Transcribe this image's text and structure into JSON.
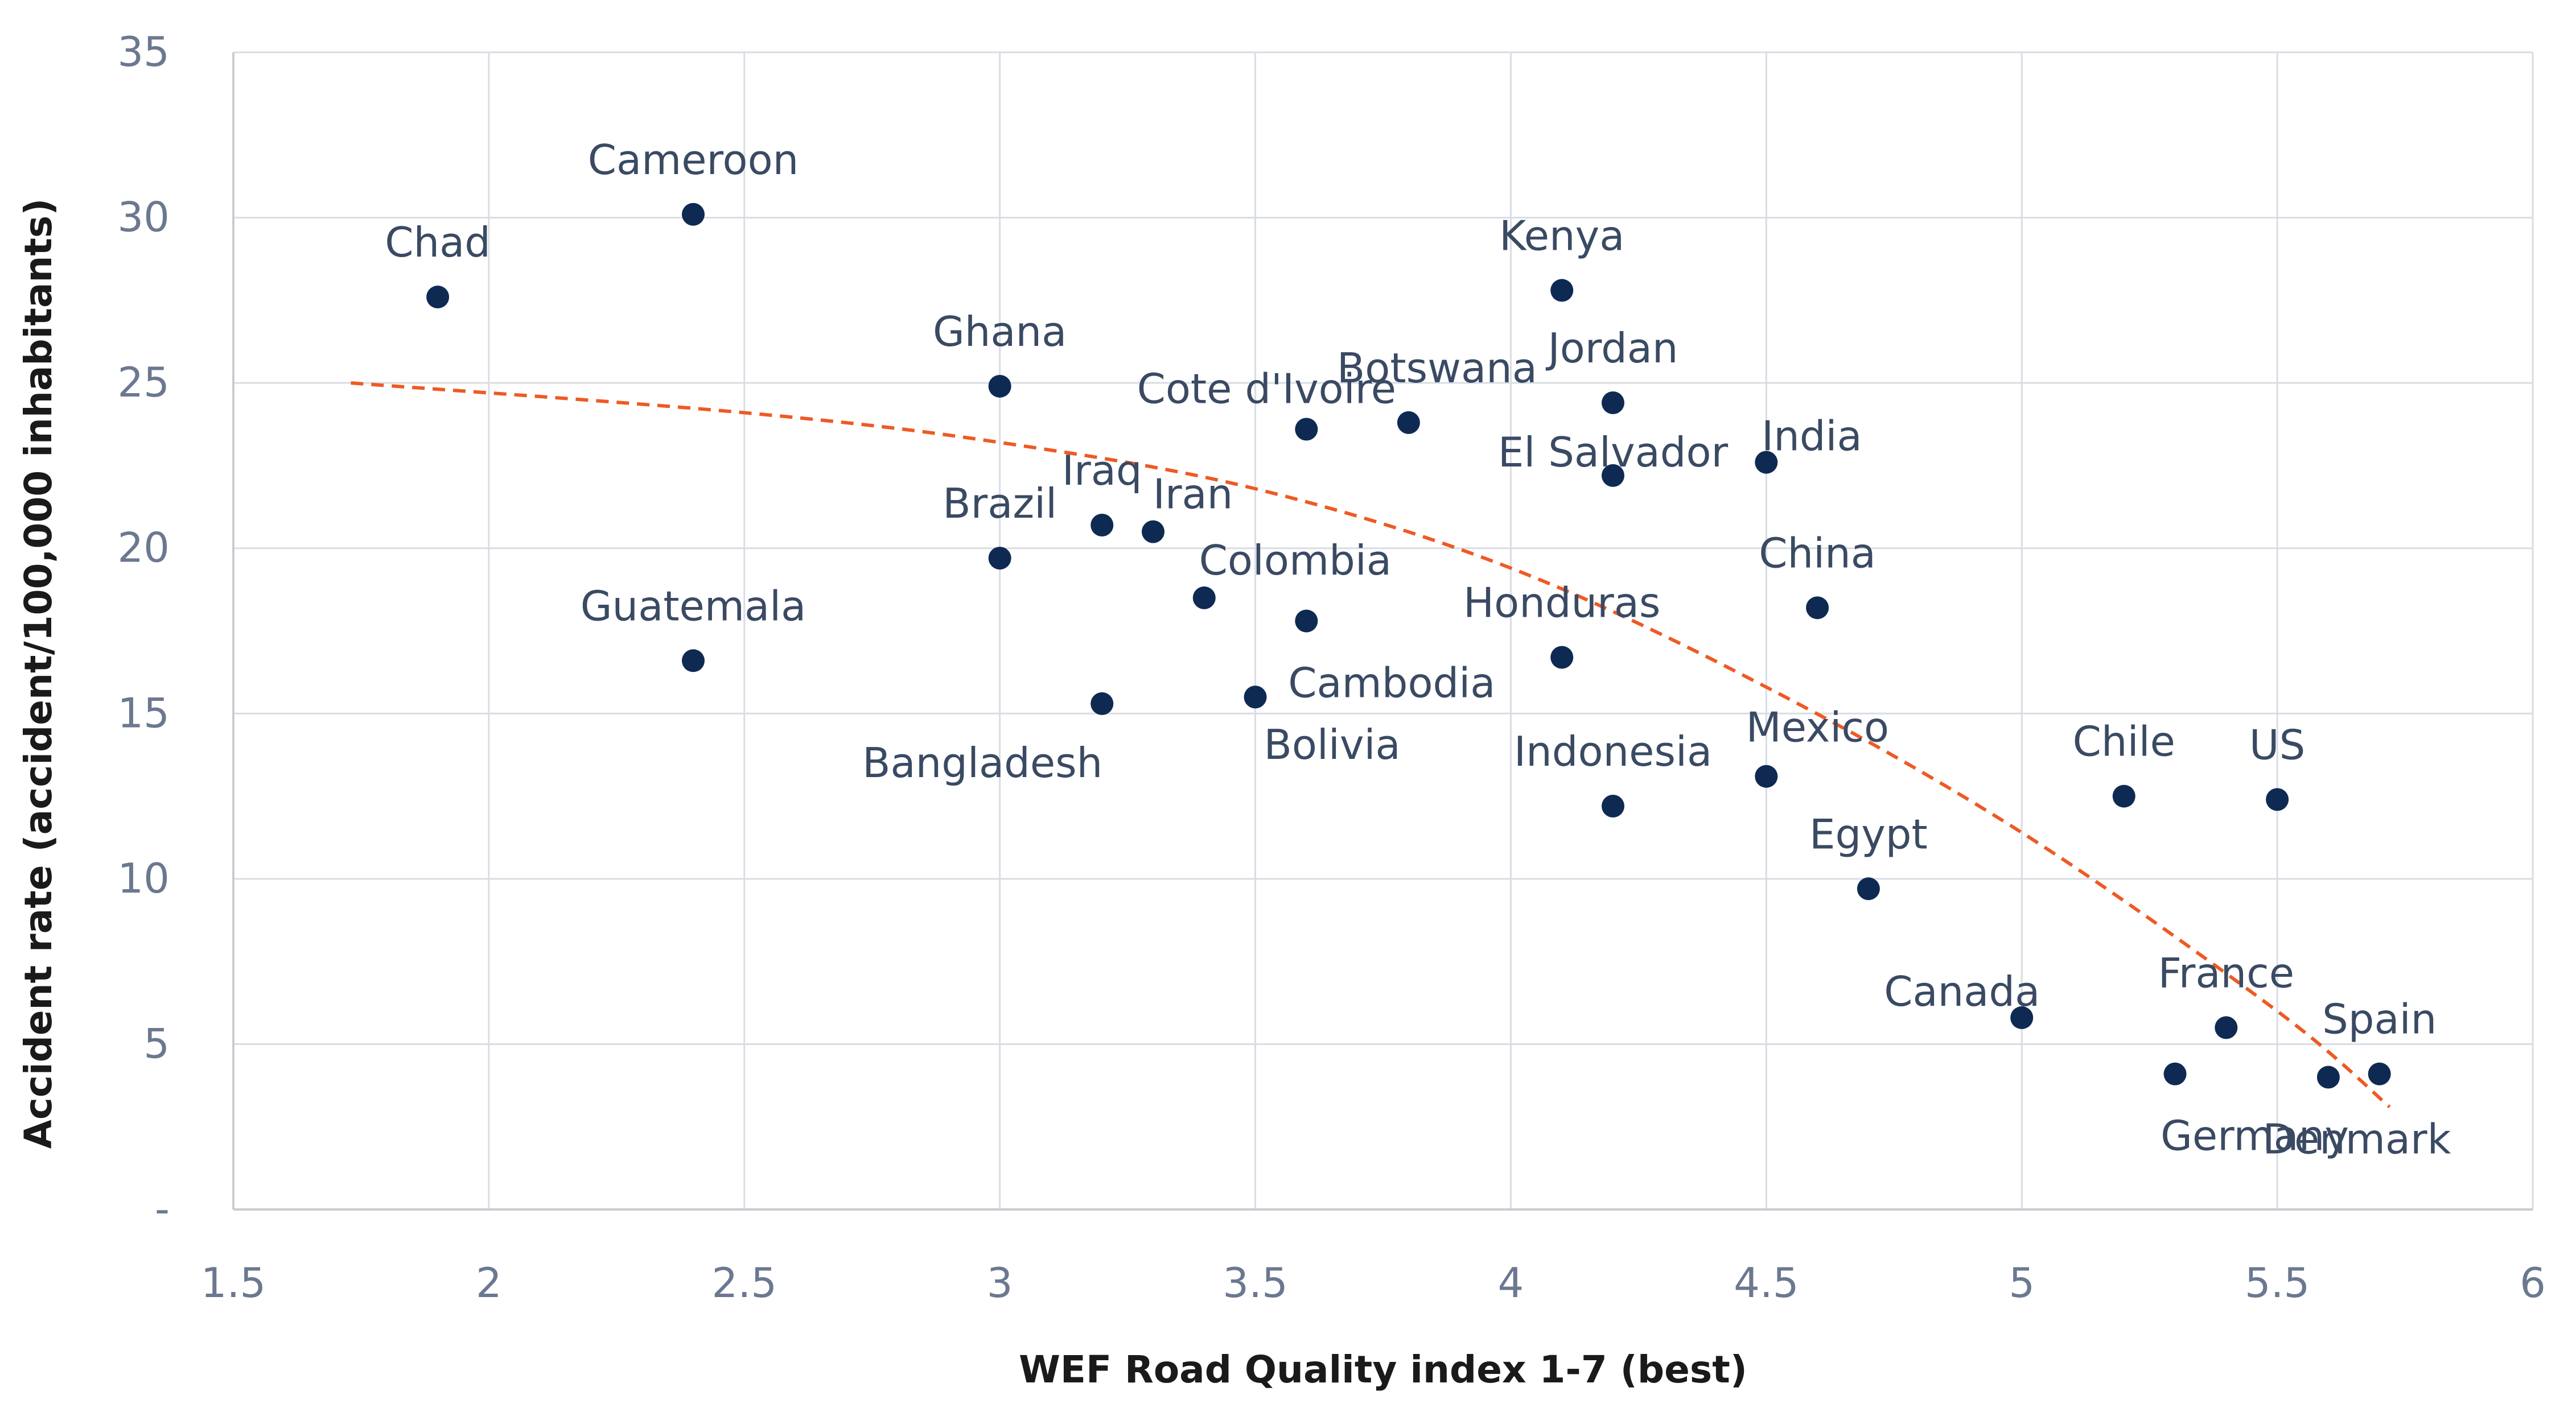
{
  "chart_data": {
    "type": "scatter",
    "xlabel": "WEF Road Quality index 1-7 (best)",
    "ylabel": "Accident rate (accident/100,000 inhabitants)",
    "xlim": [
      1.5,
      6
    ],
    "ylim": [
      0,
      35
    ],
    "x_ticks": [
      "1.5",
      "2",
      "2.5",
      "3",
      "3.5",
      "4",
      "4.5",
      "5",
      "5.5",
      "6"
    ],
    "y_ticks": [
      "-",
      "5",
      "10",
      "15",
      "20",
      "25",
      "30",
      "35"
    ],
    "grid": true,
    "points": [
      {
        "label": "Chad",
        "x": 1.9,
        "y": 27.6
      },
      {
        "label": "Cameroon",
        "x": 2.4,
        "y": 30.1
      },
      {
        "label": "Guatemala",
        "x": 2.4,
        "y": 16.6
      },
      {
        "label": "Ghana",
        "x": 3.0,
        "y": 24.9
      },
      {
        "label": "Brazil",
        "x": 3.0,
        "y": 19.7
      },
      {
        "label": "Iraq",
        "x": 3.2,
        "y": 20.7
      },
      {
        "label": "Iran",
        "x": 3.3,
        "y": 20.5
      },
      {
        "label": "Bangladesh",
        "x": 3.2,
        "y": 15.3
      },
      {
        "label": "Colombia",
        "x": 3.4,
        "y": 18.5
      },
      {
        "label": "Bolivia",
        "x": 3.5,
        "y": 15.5
      },
      {
        "label": "Cote d'Ivoire",
        "x": 3.6,
        "y": 23.6
      },
      {
        "label": "Cambodia",
        "x": 3.6,
        "y": 17.8
      },
      {
        "label": "Botswana",
        "x": 3.8,
        "y": 23.8
      },
      {
        "label": "Kenya",
        "x": 4.1,
        "y": 27.8
      },
      {
        "label": "Honduras",
        "x": 4.1,
        "y": 16.7
      },
      {
        "label": "Jordan",
        "x": 4.2,
        "y": 24.4
      },
      {
        "label": "El Salvador",
        "x": 4.2,
        "y": 22.2
      },
      {
        "label": "Indonesia",
        "x": 4.2,
        "y": 12.2
      },
      {
        "label": "India",
        "x": 4.5,
        "y": 22.6
      },
      {
        "label": "Mexico",
        "x": 4.5,
        "y": 13.1
      },
      {
        "label": "China",
        "x": 4.6,
        "y": 18.2
      },
      {
        "label": "Egypt",
        "x": 4.7,
        "y": 9.7
      },
      {
        "label": "Canada",
        "x": 5.0,
        "y": 5.8
      },
      {
        "label": "Chile",
        "x": 5.2,
        "y": 12.5
      },
      {
        "label": "Germany",
        "x": 5.3,
        "y": 4.1
      },
      {
        "label": "France",
        "x": 5.4,
        "y": 5.5
      },
      {
        "label": "US",
        "x": 5.5,
        "y": 12.4
      },
      {
        "label": "Denmark",
        "x": 5.6,
        "y": 4.0
      },
      {
        "label": "Spain",
        "x": 5.7,
        "y": 4.1
      }
    ],
    "trendline": {
      "style": "dashed",
      "color": "#ee5a24",
      "points": [
        [
          1.73,
          25.0
        ],
        [
          2.5,
          24.1
        ],
        [
          3.0,
          23.2
        ],
        [
          3.5,
          21.8
        ],
        [
          4.0,
          19.4
        ],
        [
          4.5,
          15.8
        ],
        [
          5.0,
          11.4
        ],
        [
          5.5,
          6.0
        ],
        [
          5.72,
          3.1
        ]
      ]
    }
  }
}
